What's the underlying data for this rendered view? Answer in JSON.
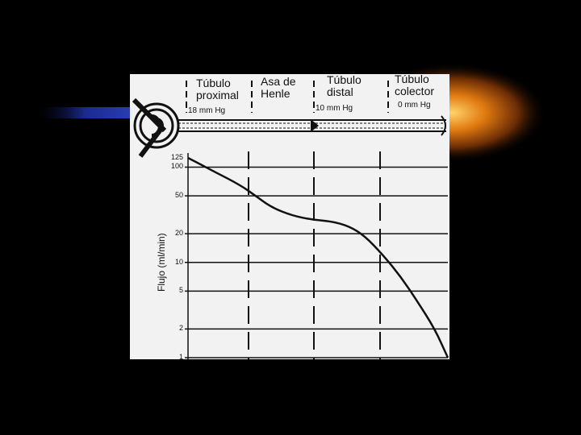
{
  "figure": {
    "segments": [
      {
        "label_line1": "Túbulo",
        "label_line2": "proximal"
      },
      {
        "label_line1": "Asa de",
        "label_line2": "Henle"
      },
      {
        "label_line1": "Túbulo",
        "label_line2": "distal"
      },
      {
        "label_line1": "Túbulo",
        "label_line2": "colector"
      }
    ],
    "pressures": [
      "18 mm Hg",
      "10 mm Hg",
      "0 mm Hg"
    ]
  },
  "chart_data": {
    "type": "line",
    "ylabel": "Flujo (ml/min)",
    "xlabel": "",
    "yscale": "log",
    "yticks": [
      "125",
      "100",
      "50",
      "20",
      "10",
      "5",
      "2",
      "1"
    ],
    "ylim": [
      1,
      125
    ],
    "x_domain": [
      0,
      1
    ],
    "series": [
      {
        "points": [
          {
            "x": 0.0,
            "y": 125
          },
          {
            "x": 0.1,
            "y": 90
          },
          {
            "x": 0.2,
            "y": 65
          },
          {
            "x": 0.26,
            "y": 50
          },
          {
            "x": 0.32,
            "y": 38
          },
          {
            "x": 0.4,
            "y": 31
          },
          {
            "x": 0.48,
            "y": 28
          },
          {
            "x": 0.55,
            "y": 27
          },
          {
            "x": 0.62,
            "y": 24
          },
          {
            "x": 0.68,
            "y": 19
          },
          {
            "x": 0.75,
            "y": 12
          },
          {
            "x": 0.82,
            "y": 7
          },
          {
            "x": 0.88,
            "y": 4
          },
          {
            "x": 0.95,
            "y": 2
          },
          {
            "x": 1.0,
            "y": 1
          }
        ]
      }
    ]
  },
  "decoration": {
    "flare_color": "#d46a0a",
    "blue_beam_color": "#1b2a8f"
  }
}
